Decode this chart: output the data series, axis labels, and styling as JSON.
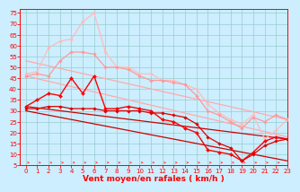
{
  "title": "",
  "xlabel": "Vent moyen/en rafales ( km/h )",
  "bg_color": "#cceeff",
  "grid_color": "#aadddd",
  "xlim": [
    -0.5,
    23
  ],
  "ylim": [
    5,
    77
  ],
  "yticks": [
    5,
    10,
    15,
    20,
    25,
    30,
    35,
    40,
    45,
    50,
    55,
    60,
    65,
    70,
    75
  ],
  "xticks": [
    0,
    1,
    2,
    3,
    4,
    5,
    6,
    7,
    8,
    9,
    10,
    11,
    12,
    13,
    14,
    15,
    16,
    17,
    18,
    19,
    20,
    21,
    22,
    23
  ],
  "series": [
    {
      "comment": "light pink wide band top - straight diagonal line from ~53 to ~26",
      "x": [
        0,
        23
      ],
      "y": [
        53,
        26
      ],
      "color": "#ffaaaa",
      "lw": 0.9,
      "marker": null,
      "ms": 0,
      "straight": true
    },
    {
      "comment": "light pink lower band - straight diagonal from ~46 to ~18",
      "x": [
        0,
        23
      ],
      "y": [
        46,
        18
      ],
      "color": "#ffaaaa",
      "lw": 0.9,
      "marker": null,
      "ms": 0,
      "straight": true
    },
    {
      "comment": "pink jagged line with markers - high peaks at x=3-7 range up to 75",
      "x": [
        0,
        1,
        2,
        3,
        4,
        5,
        6,
        7,
        8,
        9,
        10,
        11,
        12,
        13,
        14,
        15,
        16,
        17,
        18,
        19,
        20,
        21,
        22,
        23
      ],
      "y": [
        47,
        48,
        59,
        62,
        63,
        71,
        75,
        57,
        50,
        50,
        47,
        47,
        44,
        44,
        42,
        40,
        33,
        29,
        26,
        24,
        28,
        17,
        21,
        26
      ],
      "color": "#ffbbbb",
      "lw": 0.9,
      "marker": "D",
      "ms": 1.8,
      "straight": false
    },
    {
      "comment": "medium pink jagged line with markers",
      "x": [
        0,
        1,
        2,
        3,
        4,
        5,
        6,
        7,
        8,
        9,
        10,
        11,
        12,
        13,
        14,
        15,
        16,
        17,
        18,
        19,
        20,
        21,
        22,
        23
      ],
      "y": [
        46,
        47,
        46,
        53,
        57,
        57,
        56,
        50,
        50,
        49,
        46,
        44,
        44,
        43,
        42,
        37,
        30,
        28,
        25,
        22,
        27,
        25,
        28,
        26
      ],
      "color": "#ff9999",
      "lw": 0.9,
      "marker": "D",
      "ms": 1.8,
      "straight": false
    },
    {
      "comment": "red straight diagonal - from ~32 to ~17",
      "x": [
        0,
        23
      ],
      "y": [
        32,
        17
      ],
      "color": "#cc0000",
      "lw": 0.9,
      "marker": null,
      "ms": 0,
      "straight": true
    },
    {
      "comment": "red straight diagonal lower - from ~30 to ~7",
      "x": [
        0,
        23
      ],
      "y": [
        30,
        7
      ],
      "color": "#cc0000",
      "lw": 0.9,
      "marker": null,
      "ms": 0,
      "straight": true
    },
    {
      "comment": "bright red jagged line with markers - main data",
      "x": [
        0,
        1,
        2,
        3,
        4,
        5,
        6,
        7,
        8,
        9,
        10,
        11,
        12,
        13,
        14,
        15,
        16,
        17,
        18,
        19,
        20,
        21,
        22,
        23
      ],
      "y": [
        32,
        35,
        38,
        37,
        45,
        38,
        46,
        31,
        31,
        32,
        31,
        30,
        26,
        25,
        22,
        20,
        12,
        11,
        10,
        7,
        11,
        16,
        18,
        17
      ],
      "color": "#ff0000",
      "lw": 1.0,
      "marker": "D",
      "ms": 2.0,
      "straight": false
    },
    {
      "comment": "dark red jagged line - slightly below main",
      "x": [
        0,
        1,
        2,
        3,
        4,
        5,
        6,
        7,
        8,
        9,
        10,
        11,
        12,
        13,
        14,
        15,
        16,
        17,
        18,
        19,
        20,
        21,
        22,
        23
      ],
      "y": [
        31,
        31,
        32,
        32,
        31,
        31,
        31,
        30,
        30,
        30,
        30,
        29,
        29,
        28,
        27,
        24,
        18,
        15,
        13,
        7,
        10,
        14,
        16,
        17
      ],
      "color": "#dd0000",
      "lw": 0.9,
      "marker": "D",
      "ms": 1.8,
      "straight": false
    }
  ],
  "wind_arrow_color": "#ff4444",
  "xlabel_color": "#ff0000",
  "tick_color": "#ff0000",
  "axis_label_fontsize": 6.5,
  "tick_fontsize": 5.0
}
